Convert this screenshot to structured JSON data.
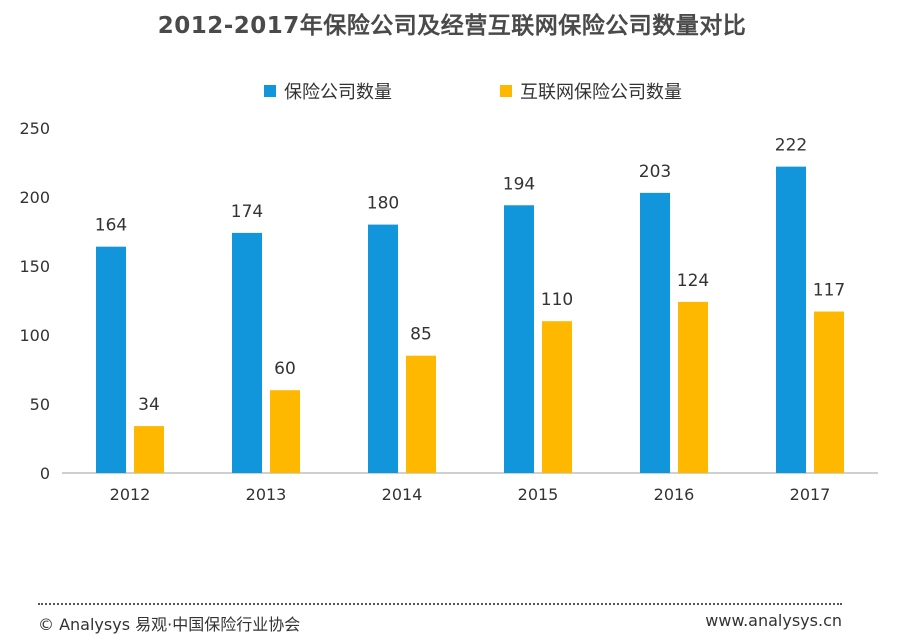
{
  "title": "2012-2017年保险公司及经营互联网保险公司数量对比",
  "colors": {
    "series1": "#1296db",
    "series2": "#ffb800",
    "axis": "#bfbfbf",
    "text": "#333333"
  },
  "chart_data": {
    "type": "bar",
    "title": "2012-2017年保险公司及经营互联网保险公司数量对比",
    "categories": [
      "2012",
      "2013",
      "2014",
      "2015",
      "2016",
      "2017"
    ],
    "series": [
      {
        "name": "保险公司数量",
        "values": [
          164,
          174,
          180,
          194,
          203,
          222
        ]
      },
      {
        "name": "互联网保险公司数量",
        "values": [
          34,
          60,
          85,
          110,
          124,
          117
        ]
      }
    ],
    "ylim": [
      0,
      250
    ],
    "yticks": [
      0,
      50,
      100,
      150,
      200,
      250
    ],
    "grid": false,
    "legend": "top-center",
    "xlabel": "",
    "ylabel": ""
  },
  "footer": {
    "left": "© Analysys 易观·中国保险行业协会",
    "right": "www.analysys.cn"
  },
  "watermark": "Analysys 易观"
}
